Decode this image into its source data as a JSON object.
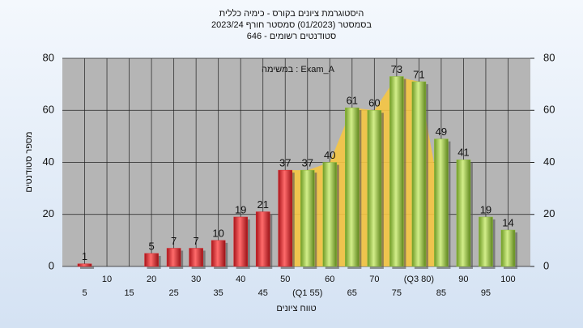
{
  "chart_data": {
    "type": "bar",
    "title": "היסטוגרמת ציונים בקורס - כימיה כללית",
    "subtitle": "בסמסטר  (01/2023)  סמסטר חורף  2023/24",
    "subtitle2": "646 - סטודנטים רשומים",
    "annotation": "במשימה : Exam_A",
    "x_label": "טווח ציונים",
    "y_label": "מספר סטודנטים",
    "categories": [
      "5",
      "10",
      "15",
      "20",
      "25",
      "30",
      "35",
      "40",
      "45",
      "50",
      "(Q1 55)",
      "60",
      "65",
      "70",
      "75",
      "(Q3 80)",
      "85",
      "90",
      "95",
      "100"
    ],
    "values": [
      1,
      0,
      0,
      5,
      7,
      7,
      10,
      19,
      21,
      37,
      37,
      40,
      61,
      60,
      73,
      71,
      49,
      41,
      19,
      14
    ],
    "colors": [
      "#d9262b",
      "#d9262b",
      "#d9262b",
      "#d9262b",
      "#d9262b",
      "#d9262b",
      "#d9262b",
      "#d9262b",
      "#d9262b",
      "#d9262b",
      "#8fbe3c",
      "#8fbe3c",
      "#8fbe3c",
      "#8fbe3c",
      "#8fbe3c",
      "#8fbe3c",
      "#8fbe3c",
      "#8fbe3c",
      "#8fbe3c",
      "#8fbe3c"
    ],
    "ylim": [
      0,
      80
    ],
    "yticks": [
      0,
      20,
      40,
      60,
      80
    ],
    "y2lim": [
      0,
      80
    ],
    "y2ticks": [
      0,
      20,
      40,
      60,
      80
    ],
    "grid": true
  }
}
